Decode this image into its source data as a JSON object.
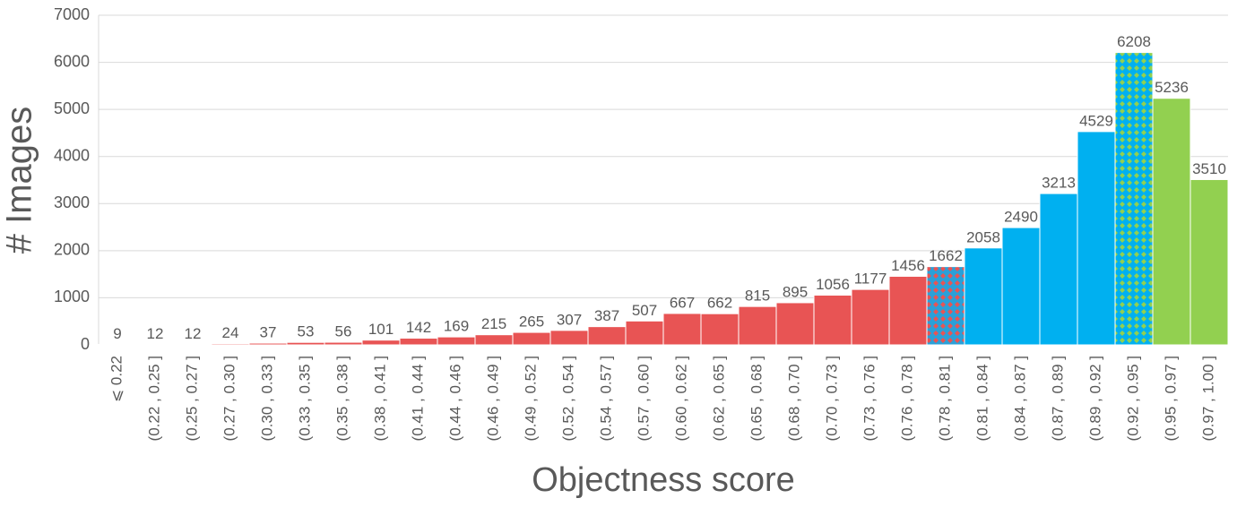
{
  "chart_data": {
    "type": "bar",
    "x_label": "Objectness score",
    "y_label": "# Images",
    "categories": [
      "⩽ 0.22",
      "(0.22 , 0.25 ]",
      "(0.25 , 0.27 ]",
      "(0.27 , 0.30 ]",
      "(0.30 , 0.33 ]",
      "(0.33 , 0.35 ]",
      "(0.35 , 0.38 ]",
      "(0.38 , 0.41 ]",
      "(0.41 , 0.44 ]",
      "(0.44 , 0.46 ]",
      "(0.46 , 0.49 ]",
      "(0.49 , 0.52 ]",
      "(0.52 , 0.54 ]",
      "(0.54 , 0.57 ]",
      "(0.57 , 0.60 ]",
      "(0.60 , 0.62 ]",
      "(0.62 , 0.65 ]",
      "(0.65 , 0.68 ]",
      "(0.68 , 0.70 ]",
      "(0.70 , 0.73 ]",
      "(0.73 , 0.76 ]",
      "(0.76 , 0.78 ]",
      "(0.78 , 0.81 ]",
      "(0.81 , 0.84 ]",
      "(0.84 , 0.87 ]",
      "(0.87 , 0.89 ]",
      "(0.89 , 0.92 ]",
      "(0.92 , 0.95 ]",
      "(0.95 , 0.97 ]",
      "(0.97 , 1.00 ]"
    ],
    "values": [
      9,
      12,
      12,
      24,
      37,
      53,
      56,
      101,
      142,
      169,
      215,
      265,
      307,
      387,
      507,
      667,
      662,
      815,
      895,
      1056,
      1177,
      1456,
      1662,
      2058,
      2490,
      3213,
      4529,
      6208,
      5236,
      3510
    ],
    "colors": [
      "#e85454",
      "#e85454",
      "#e85454",
      "#e85454",
      "#e85454",
      "#e85454",
      "#e85454",
      "#e85454",
      "#e85454",
      "#e85454",
      "#e85454",
      "#e85454",
      "#e85454",
      "#e85454",
      "#e85454",
      "#e85454",
      "#e85454",
      "#e85454",
      "#e85454",
      "#e85454",
      "#e85454",
      "#e85454",
      [
        "#2aa0d8",
        "#e85454"
      ],
      "#00b0f0",
      "#00b0f0",
      "#00b0f0",
      "#00b0f0",
      [
        "#00b0f0",
        "#92d050"
      ],
      "#92d050",
      "#92d050"
    ],
    "ylim": [
      0,
      7000
    ],
    "yticks": [
      0,
      1000,
      2000,
      3000,
      4000,
      5000,
      6000,
      7000
    ],
    "grid": true,
    "data_labels": true
  }
}
